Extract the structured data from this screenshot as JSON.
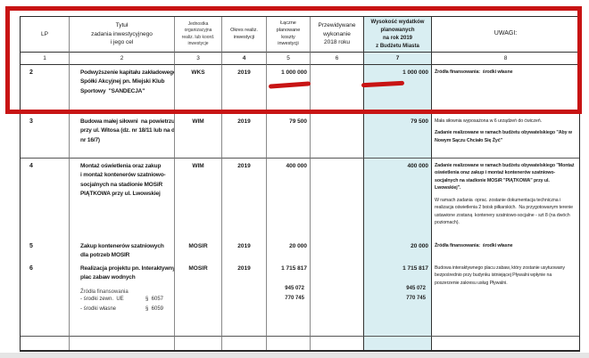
{
  "colors": {
    "highlight_red": "#c81414",
    "accent_column_bg": "#d9eef2"
  },
  "table": {
    "header": {
      "lp": "LP",
      "title": "Tytuł\nzadania inwestycyjnego\ni jego cel",
      "unit": "Jednostka\norganizacyjna\nrealiz. lub koord.\ninwestycje",
      "period": "Okres realiz.\ninwestycji",
      "total": "Łączne\nplanowane\nkoszty\ninwestycji",
      "expected2018": "Przewidywane\nwykonanie\n2018 roku",
      "plan2019": "Wysokość wydatków\nplanowanych\nna rok  2019\nz Budżetu Miasta",
      "remarks": "UWAGI:"
    },
    "column_numbers": [
      "1",
      "2",
      "3",
      "4",
      "5",
      "6",
      "7",
      "8"
    ],
    "rows": [
      {
        "lp": "2",
        "title": "Podwyższenie kapitału zakładowego\nSpółki Akcyjnej pn. Miejski Klub\nSportowy  \"SANDECJA\"",
        "unit": "WKS",
        "period": "2019",
        "total": "1 000 000",
        "plan2019": "1 000 000",
        "remark1": "Źródła finansowania:  środki własne",
        "remark2": ""
      },
      {
        "lp": "3",
        "title": "Budowa małej siłowni  na powietrzu\nprzy ul. Witosa (dz. nr 18/11 lub na dz.\nnr 16/7)",
        "unit": "WIM",
        "period": "2019",
        "total": "79 500",
        "plan2019": "79 500",
        "remark1": "Mała siłownia wyposażona w 6 urządzeń do ćwiczeń.",
        "remark2": "Zadanie realizowane w ramach budżetu obywatelskiego \"Aby w\nNowym Sączu Chciało Się Żyć\""
      },
      {
        "lp": "4",
        "title": "Montaż oświetlenia oraz zakup\ni montaż kontenerów szatniowo-\nsocjalnych na stadionie MOSiR\nPIĄTKOWA przy ul. Lwowskiej",
        "unit": "WIM",
        "period": "2019",
        "total": "400 000",
        "plan2019": "400 000",
        "remark1": "Zadanie realizowane w ramach budżetu obywatelskiego \"Montaż\noświetlenia oraz zakup i montaż kontenerów szatniowo-\nsocjalnych na stadionie MOSiR \"PIĄTKOWA\" przy ul.\nLwowskiej\".",
        "remark2": "W ramach zadania  oprac. zostanie dokumentacja techniczna i\nrealizacja oświetlenia 2 boisk piłkarskich.  Na przygotowanym terenie\nustawione zostaną  kontenery szatniowo-socjalne - szt 8 (na dwóch\npoziomach)."
      },
      {
        "lp": "5",
        "title": "Zakup kontenerów szatniowych\ndla potrzeb MOSIR",
        "unit": "MOSIR",
        "period": "2019",
        "total": "20 000",
        "plan2019": "20 000",
        "remark1": "Źródła finansowania:  środki własne",
        "remark2": ""
      },
      {
        "lp": "6",
        "title": "Realizacja projektu pn. Interaktywny\nplac zabaw wodnych",
        "unit": "MOSIR",
        "period": "2019",
        "total": "1 715 817",
        "plan2019": "1 715 817",
        "remark1": "Budowa interaktywnego placu zabaw, który zostanie usytuowany\nbezpośrednio przy budynku istniejącej Pływalni wpłynie na\nposzerzenie zakresu usług Pływalni.",
        "remark2": ""
      }
    ],
    "financing": {
      "heading": "Źródła finansowania",
      "items": [
        {
          "label": "- środki zewn.  UE",
          "par": "§  6057",
          "total": "945 072",
          "plan2019": "945 072"
        },
        {
          "label": "- środki własne",
          "par": "§  6059",
          "total": "770 745",
          "plan2019": "770 745"
        }
      ],
      "totals_combined": "945 072\n770 745",
      "plan2019_combined": "945 072\n770 745"
    }
  }
}
